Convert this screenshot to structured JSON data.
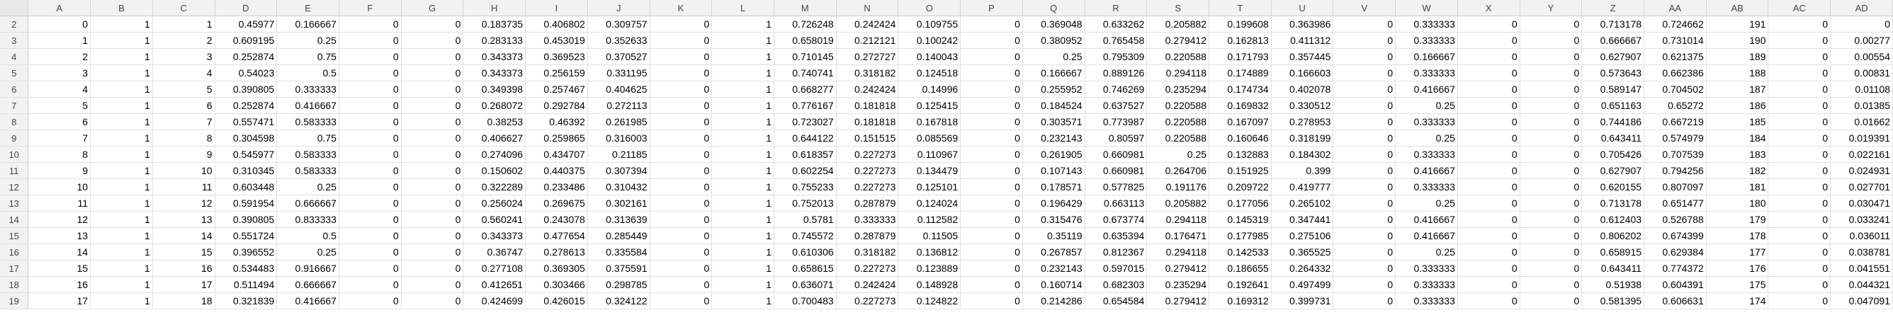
{
  "columns": [
    "A",
    "B",
    "C",
    "D",
    "E",
    "F",
    "G",
    "H",
    "I",
    "J",
    "K",
    "L",
    "M",
    "N",
    "O",
    "P",
    "Q",
    "R",
    "S",
    "T",
    "U",
    "V",
    "W",
    "X",
    "Y",
    "Z",
    "AA",
    "AB",
    "AC",
    "AD"
  ],
  "rows": [
    {
      "num": "2",
      "cells": [
        "0",
        "1",
        "1",
        "0.45977",
        "0.166667",
        "0",
        "0",
        "0.183735",
        "0.406802",
        "0.309757",
        "0",
        "1",
        "0.726248",
        "0.242424",
        "0.109755",
        "0",
        "0.369048",
        "0.633262",
        "0.205882",
        "0.199608",
        "0.363986",
        "0",
        "0.333333",
        "0",
        "0",
        "0.713178",
        "0.724662",
        "191",
        "0",
        "0"
      ]
    },
    {
      "num": "3",
      "cells": [
        "1",
        "1",
        "2",
        "0.609195",
        "0.25",
        "0",
        "0",
        "0.283133",
        "0.453019",
        "0.352633",
        "0",
        "1",
        "0.658019",
        "0.212121",
        "0.100242",
        "0",
        "0.380952",
        "0.765458",
        "0.279412",
        "0.162813",
        "0.411312",
        "0",
        "0.333333",
        "0",
        "0",
        "0.666667",
        "0.731014",
        "190",
        "0",
        "0.00277"
      ]
    },
    {
      "num": "4",
      "cells": [
        "2",
        "1",
        "3",
        "0.252874",
        "0.75",
        "0",
        "0",
        "0.343373",
        "0.369523",
        "0.370527",
        "0",
        "1",
        "0.710145",
        "0.272727",
        "0.140043",
        "0",
        "0.25",
        "0.795309",
        "0.220588",
        "0.171793",
        "0.357445",
        "0",
        "0.166667",
        "0",
        "0",
        "0.627907",
        "0.621375",
        "189",
        "0",
        "0.00554"
      ]
    },
    {
      "num": "5",
      "cells": [
        "3",
        "1",
        "4",
        "0.54023",
        "0.5",
        "0",
        "0",
        "0.343373",
        "0.256159",
        "0.331195",
        "0",
        "1",
        "0.740741",
        "0.318182",
        "0.124518",
        "0",
        "0.166667",
        "0.889126",
        "0.294118",
        "0.174889",
        "0.166603",
        "0",
        "0.333333",
        "0",
        "0",
        "0.573643",
        "0.662386",
        "188",
        "0",
        "0.00831"
      ]
    },
    {
      "num": "6",
      "cells": [
        "4",
        "1",
        "5",
        "0.390805",
        "0.333333",
        "0",
        "0",
        "0.349398",
        "0.257467",
        "0.404625",
        "0",
        "1",
        "0.668277",
        "0.242424",
        "0.14996",
        "0",
        "0.255952",
        "0.746269",
        "0.235294",
        "0.174734",
        "0.402078",
        "0",
        "0.416667",
        "0",
        "0",
        "0.589147",
        "0.704502",
        "187",
        "0",
        "0.01108"
      ]
    },
    {
      "num": "7",
      "cells": [
        "5",
        "1",
        "6",
        "0.252874",
        "0.416667",
        "0",
        "0",
        "0.268072",
        "0.292784",
        "0.272113",
        "0",
        "1",
        "0.776167",
        "0.181818",
        "0.125415",
        "0",
        "0.184524",
        "0.637527",
        "0.220588",
        "0.169832",
        "0.330512",
        "0",
        "0.25",
        "0",
        "0",
        "0.651163",
        "0.65272",
        "186",
        "0",
        "0.01385"
      ]
    },
    {
      "num": "8",
      "cells": [
        "6",
        "1",
        "7",
        "0.557471",
        "0.583333",
        "0",
        "0",
        "0.38253",
        "0.46392",
        "0.261985",
        "0",
        "1",
        "0.723027",
        "0.181818",
        "0.167818",
        "0",
        "0.303571",
        "0.773987",
        "0.220588",
        "0.167097",
        "0.278953",
        "0",
        "0.333333",
        "0",
        "0",
        "0.744186",
        "0.667219",
        "185",
        "0",
        "0.01662"
      ]
    },
    {
      "num": "9",
      "cells": [
        "7",
        "1",
        "8",
        "0.304598",
        "0.75",
        "0",
        "0",
        "0.406627",
        "0.259865",
        "0.316003",
        "0",
        "1",
        "0.644122",
        "0.151515",
        "0.085569",
        "0",
        "0.232143",
        "0.80597",
        "0.220588",
        "0.160646",
        "0.318199",
        "0",
        "0.25",
        "0",
        "0",
        "0.643411",
        "0.574979",
        "184",
        "0",
        "0.019391"
      ]
    },
    {
      "num": "10",
      "cells": [
        "8",
        "1",
        "9",
        "0.545977",
        "0.583333",
        "0",
        "0",
        "0.274096",
        "0.434707",
        "0.21185",
        "0",
        "1",
        "0.618357",
        "0.227273",
        "0.110967",
        "0",
        "0.261905",
        "0.660981",
        "0.25",
        "0.132883",
        "0.184302",
        "0",
        "0.333333",
        "0",
        "0",
        "0.705426",
        "0.707539",
        "183",
        "0",
        "0.022161"
      ]
    },
    {
      "num": "11",
      "cells": [
        "9",
        "1",
        "10",
        "0.310345",
        "0.583333",
        "0",
        "0",
        "0.150602",
        "0.440375",
        "0.307394",
        "0",
        "1",
        "0.602254",
        "0.227273",
        "0.134479",
        "0",
        "0.107143",
        "0.660981",
        "0.264706",
        "0.151925",
        "0.399",
        "0",
        "0.416667",
        "0",
        "0",
        "0.627907",
        "0.794256",
        "182",
        "0",
        "0.024931"
      ]
    },
    {
      "num": "12",
      "cells": [
        "10",
        "1",
        "11",
        "0.603448",
        "0.25",
        "0",
        "0",
        "0.322289",
        "0.233486",
        "0.310432",
        "0",
        "1",
        "0.755233",
        "0.227273",
        "0.125101",
        "0",
        "0.178571",
        "0.577825",
        "0.191176",
        "0.209722",
        "0.419777",
        "0",
        "0.333333",
        "0",
        "0",
        "0.620155",
        "0.807097",
        "181",
        "0",
        "0.027701"
      ]
    },
    {
      "num": "13",
      "cells": [
        "11",
        "1",
        "12",
        "0.591954",
        "0.666667",
        "0",
        "0",
        "0.256024",
        "0.269675",
        "0.302161",
        "0",
        "1",
        "0.752013",
        "0.287879",
        "0.124024",
        "0",
        "0.196429",
        "0.663113",
        "0.205882",
        "0.177056",
        "0.265102",
        "0",
        "0.25",
        "0",
        "0",
        "0.713178",
        "0.651477",
        "180",
        "0",
        "0.030471"
      ]
    },
    {
      "num": "14",
      "cells": [
        "12",
        "1",
        "13",
        "0.390805",
        "0.833333",
        "0",
        "0",
        "0.560241",
        "0.243078",
        "0.313639",
        "0",
        "1",
        "0.5781",
        "0.333333",
        "0.112582",
        "0",
        "0.315476",
        "0.673774",
        "0.294118",
        "0.145319",
        "0.347441",
        "0",
        "0.416667",
        "0",
        "0",
        "0.612403",
        "0.526788",
        "179",
        "0",
        "0.033241"
      ]
    },
    {
      "num": "15",
      "cells": [
        "13",
        "1",
        "14",
        "0.551724",
        "0.5",
        "0",
        "0",
        "0.343373",
        "0.477654",
        "0.285449",
        "0",
        "1",
        "0.745572",
        "0.287879",
        "0.11505",
        "0",
        "0.35119",
        "0.635394",
        "0.176471",
        "0.177985",
        "0.275106",
        "0",
        "0.416667",
        "0",
        "0",
        "0.806202",
        "0.674399",
        "178",
        "0",
        "0.036011"
      ]
    },
    {
      "num": "16",
      "cells": [
        "14",
        "1",
        "15",
        "0.396552",
        "0.25",
        "0",
        "0",
        "0.36747",
        "0.278613",
        "0.335584",
        "0",
        "1",
        "0.610306",
        "0.318182",
        "0.136812",
        "0",
        "0.267857",
        "0.812367",
        "0.294118",
        "0.142533",
        "0.365525",
        "0",
        "0.25",
        "0",
        "0",
        "0.658915",
        "0.629384",
        "177",
        "0",
        "0.038781"
      ]
    },
    {
      "num": "17",
      "cells": [
        "15",
        "1",
        "16",
        "0.534483",
        "0.916667",
        "0",
        "0",
        "0.277108",
        "0.369305",
        "0.375591",
        "0",
        "1",
        "0.658615",
        "0.227273",
        "0.123889",
        "0",
        "0.232143",
        "0.597015",
        "0.279412",
        "0.186655",
        "0.264332",
        "0",
        "0.333333",
        "0",
        "0",
        "0.643411",
        "0.774372",
        "176",
        "0",
        "0.041551"
      ]
    },
    {
      "num": "18",
      "cells": [
        "16",
        "1",
        "17",
        "0.511494",
        "0.666667",
        "0",
        "0",
        "0.412651",
        "0.303466",
        "0.298785",
        "0",
        "1",
        "0.636071",
        "0.242424",
        "0.148928",
        "0",
        "0.160714",
        "0.682303",
        "0.235294",
        "0.192641",
        "0.497499",
        "0",
        "0.333333",
        "0",
        "0",
        "0.51938",
        "0.604391",
        "175",
        "0",
        "0.044321"
      ]
    },
    {
      "num": "19",
      "cells": [
        "17",
        "1",
        "18",
        "0.321839",
        "0.416667",
        "0",
        "0",
        "0.424699",
        "0.426015",
        "0.324122",
        "0",
        "1",
        "0.700483",
        "0.227273",
        "0.124822",
        "0",
        "0.214286",
        "0.654584",
        "0.279412",
        "0.169312",
        "0.399731",
        "0",
        "0.333333",
        "0",
        "0",
        "0.581395",
        "0.606631",
        "174",
        "0",
        "0.047091"
      ]
    }
  ]
}
